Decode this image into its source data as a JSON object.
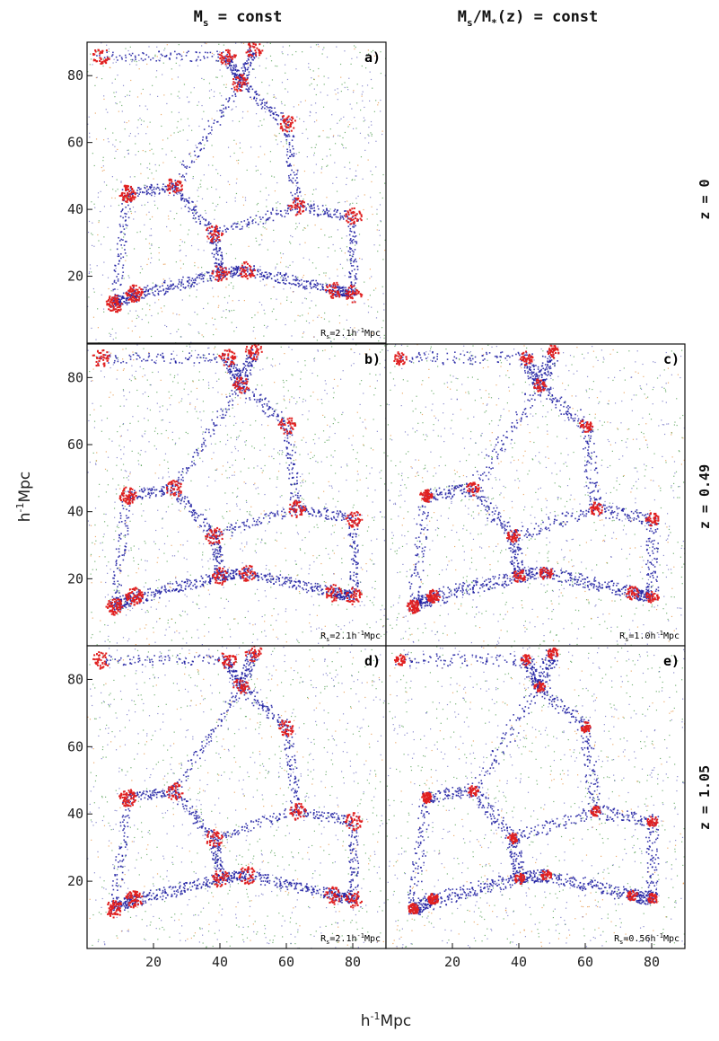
{
  "column_titles": {
    "left": "M_s = const",
    "left_main": "M",
    "left_sub": "s",
    "left_rest": " = const",
    "right_main1": "M",
    "right_sub1": "s",
    "right_mid": "/M",
    "right_sub2": "*",
    "right_rest": "(z) = const"
  },
  "row_labels": [
    "z = 0",
    "z = 0.49",
    "z = 1.05"
  ],
  "axis_labels": {
    "y_main": "h",
    "y_sup": "-1",
    "y_rest": "Mpc",
    "x_main": "h",
    "x_sup": "-1",
    "x_rest": "Mpc"
  },
  "colors": {
    "cluster": "#e02020",
    "filament": "#1a1aa0",
    "sheet": "#2e8b2e",
    "void": "#e08020",
    "frame": "#111111"
  },
  "chart_data": [
    {
      "type": "scatter",
      "panel": "a)",
      "column": "M_s = const",
      "row": "z = 0",
      "smoothing_label": "R_s=2.1h^-1Mpc",
      "smoothing_radius": 2.1,
      "smoothing_unit": "h^-1Mpc",
      "xlim": [
        0,
        90
      ],
      "ylim": [
        0,
        90
      ],
      "yticks": [
        20,
        40,
        60,
        80
      ],
      "xticks": [],
      "series_colors": [
        "red",
        "blue",
        "green",
        "orange"
      ]
    },
    {
      "type": "scatter",
      "panel": "b)",
      "column": "M_s = const",
      "row": "z = 0.49",
      "smoothing_label": "R_s=2.1h^-1Mpc",
      "smoothing_radius": 2.1,
      "smoothing_unit": "h^-1Mpc",
      "xlim": [
        0,
        90
      ],
      "ylim": [
        0,
        90
      ],
      "yticks": [
        20,
        40,
        60,
        80
      ],
      "xticks": [],
      "series_colors": [
        "red",
        "blue",
        "green",
        "orange"
      ]
    },
    {
      "type": "scatter",
      "panel": "c)",
      "column": "M_s/M_*(z) = const",
      "row": "z = 0.49",
      "smoothing_label": "R_s=1.0h^-1Mpc",
      "smoothing_radius": 1.0,
      "smoothing_unit": "h^-1Mpc",
      "xlim": [
        0,
        90
      ],
      "ylim": [
        0,
        90
      ],
      "yticks": [],
      "xticks": [],
      "series_colors": [
        "red",
        "blue",
        "green",
        "orange"
      ]
    },
    {
      "type": "scatter",
      "panel": "d)",
      "column": "M_s = const",
      "row": "z = 1.05",
      "smoothing_label": "R_s=2.1h^-1Mpc",
      "smoothing_radius": 2.1,
      "smoothing_unit": "h^-1Mpc",
      "xlim": [
        0,
        90
      ],
      "ylim": [
        0,
        90
      ],
      "yticks": [
        20,
        40,
        60,
        80
      ],
      "xticks": [
        20,
        40,
        60,
        80
      ],
      "series_colors": [
        "red",
        "blue",
        "green",
        "orange"
      ]
    },
    {
      "type": "scatter",
      "panel": "e)",
      "column": "M_s/M_*(z) = const",
      "row": "z = 1.05",
      "smoothing_label": "R_s=0.56h^-1Mpc",
      "smoothing_radius": 0.56,
      "smoothing_unit": "h^-1Mpc",
      "xlim": [
        0,
        90
      ],
      "ylim": [
        0,
        90
      ],
      "yticks": [],
      "xticks": [
        20,
        40,
        60,
        80
      ],
      "series_colors": [
        "red",
        "blue",
        "green",
        "orange"
      ]
    }
  ],
  "rs_text": {
    "a": {
      "r": "R",
      "s": "s",
      "val": "=2.1h",
      "sup": "-1",
      "unit": "Mpc"
    },
    "b": {
      "r": "R",
      "s": "s",
      "val": "=2.1h",
      "sup": "-1",
      "unit": "Mpc"
    },
    "c": {
      "r": "R",
      "s": "s",
      "val": "=1.0h",
      "sup": "-1",
      "unit": "Mpc"
    },
    "d": {
      "r": "R",
      "s": "s",
      "val": "=2.1h",
      "sup": "-1",
      "unit": "Mpc"
    },
    "e": {
      "r": "R",
      "s": "s",
      "val": "=0.56h",
      "sup": "-1",
      "unit": "Mpc"
    }
  }
}
